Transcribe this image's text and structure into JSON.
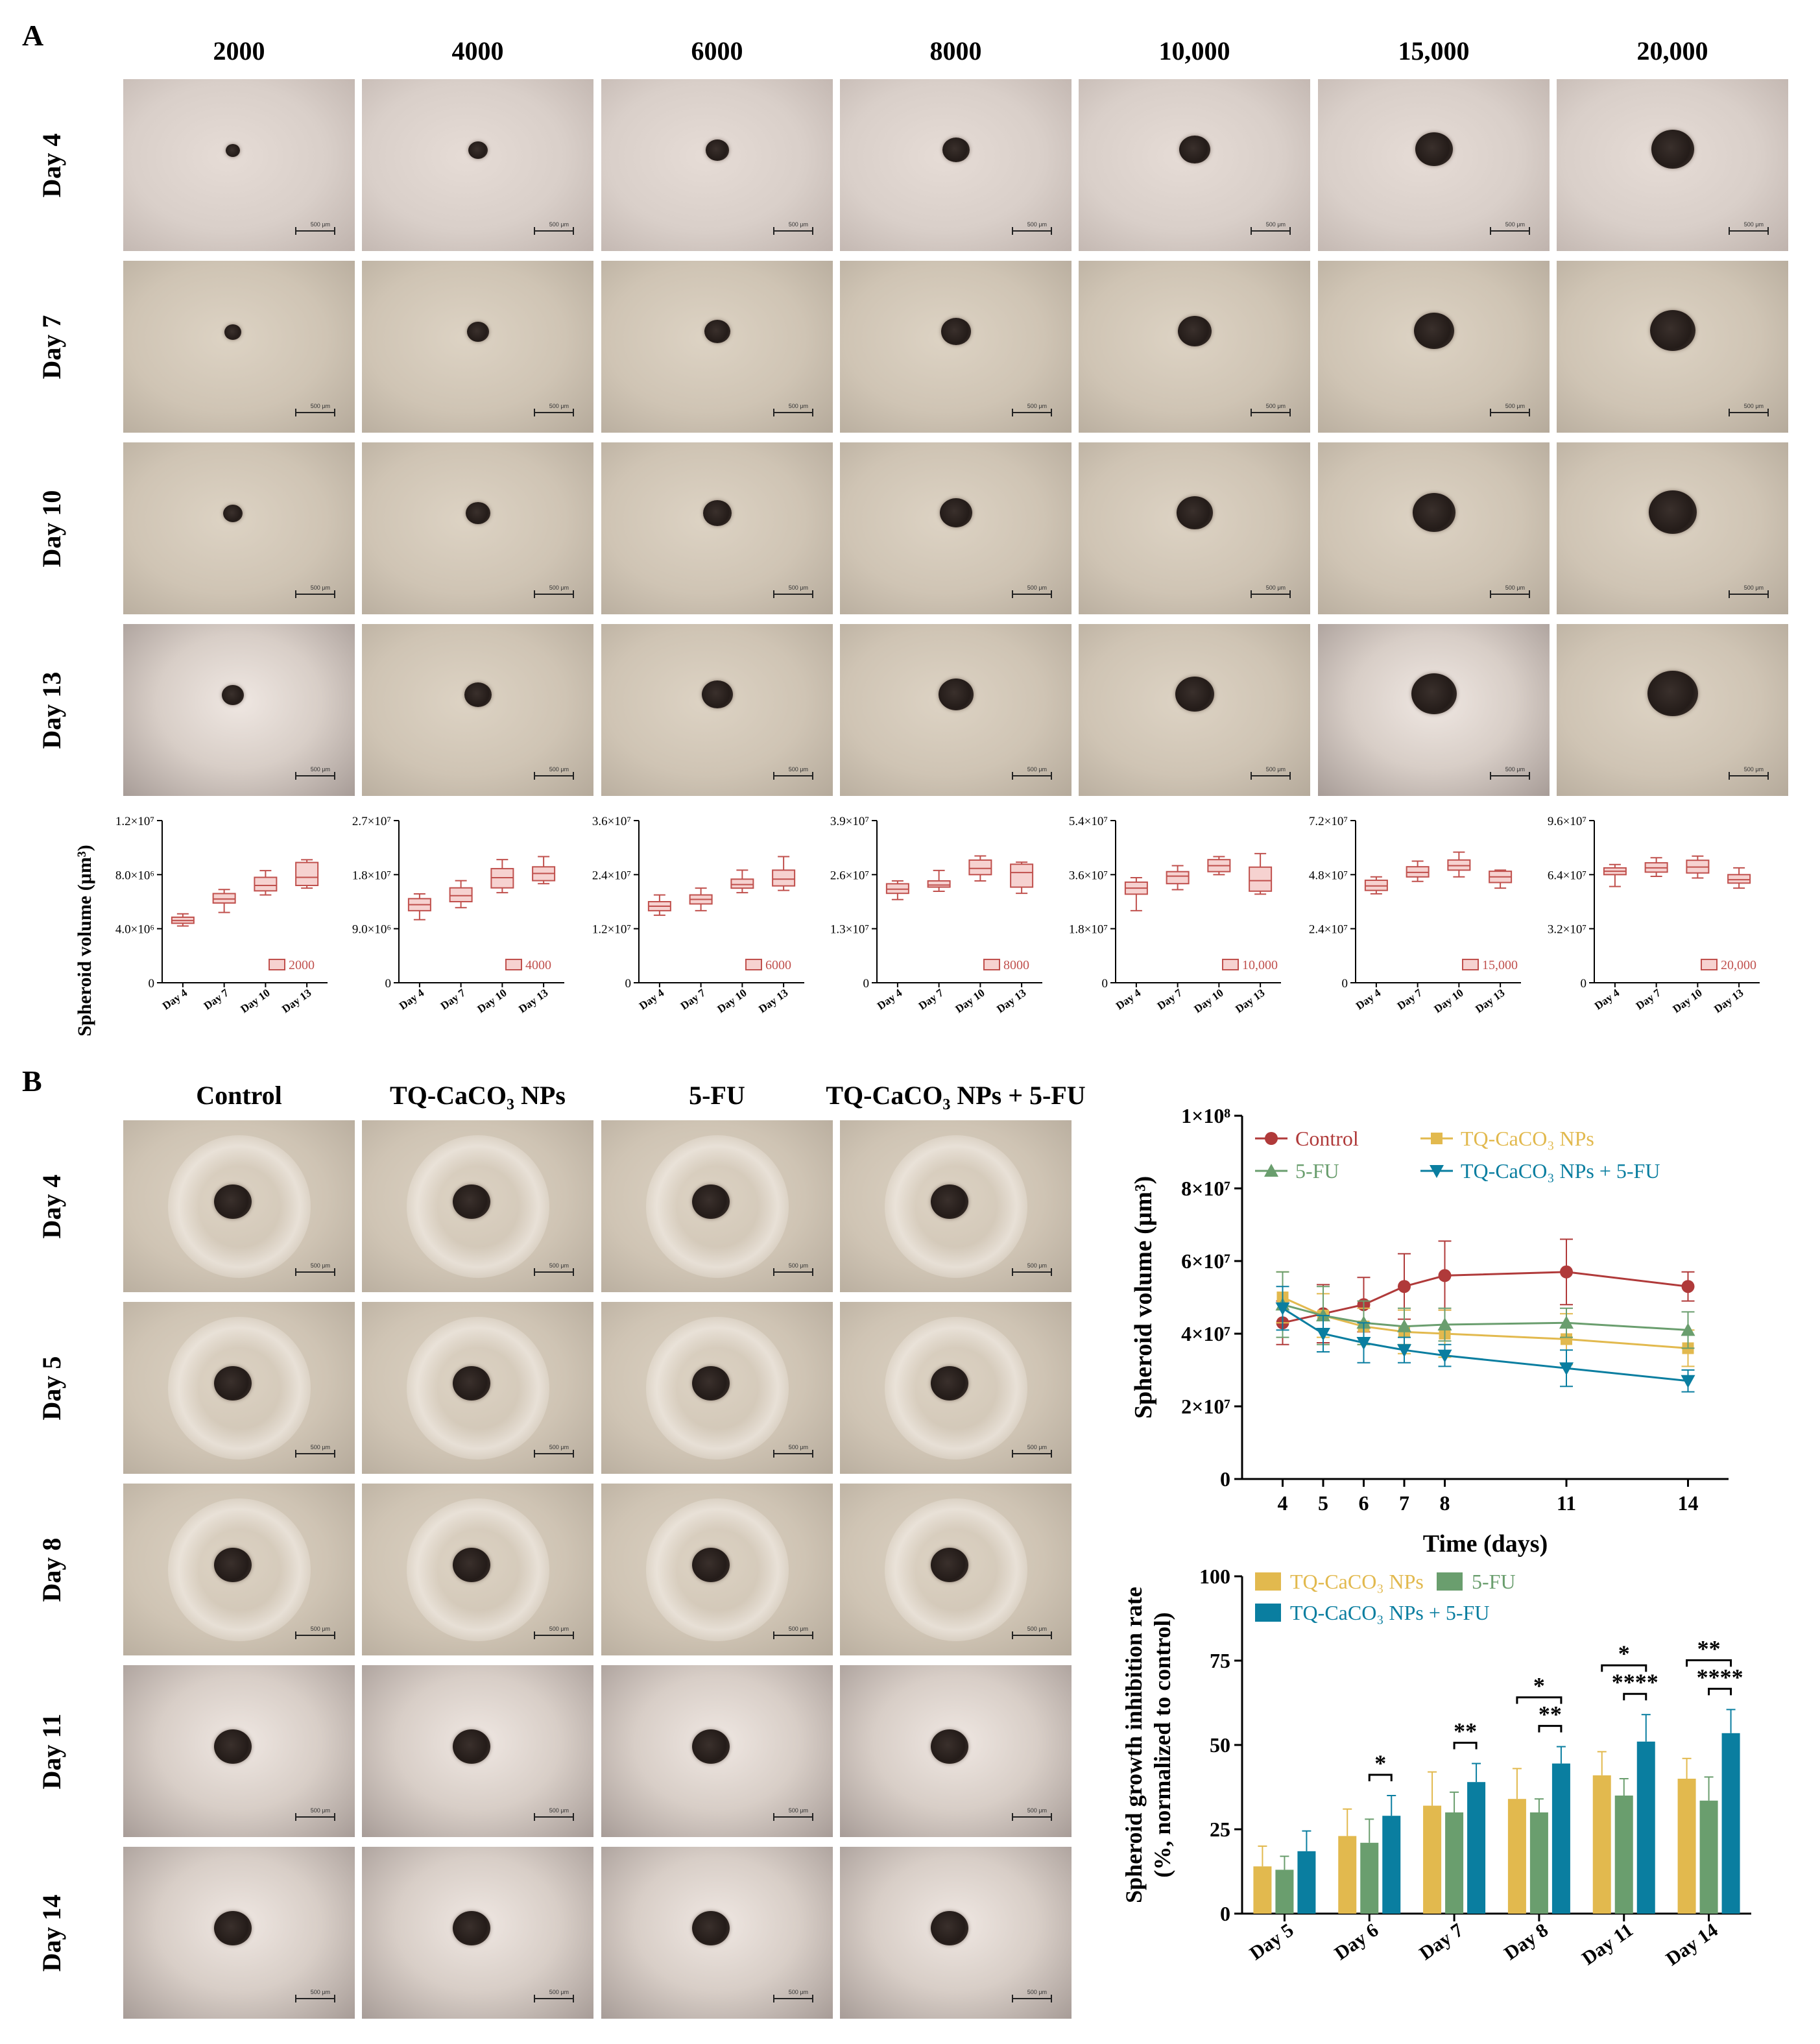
{
  "panelA": {
    "letter": "A",
    "cell_counts": [
      "2000",
      "4000",
      "6000",
      "8000",
      "10,000",
      "15,000",
      "20,000"
    ],
    "days": [
      "Day 4",
      "Day 7",
      "Day 10",
      "Day 13"
    ],
    "scale_label": "500 μm"
  },
  "panelB": {
    "letter": "B",
    "treatments": [
      "Control",
      "TQ-CaCO₃ NPs",
      "5-FU",
      "TQ-CaCO₃ NPs + 5-FU"
    ],
    "days": [
      "Day 4",
      "Day 5",
      "Day 8",
      "Day 11",
      "Day 14"
    ],
    "scale_label": "500 μm"
  },
  "colors": {
    "box": "#c0504d",
    "box_fill": "#f6d2d0",
    "control": "#b03a3a",
    "tq": "#e2b94e",
    "fu": "#6a9e6e",
    "combo": "#0a7ea0"
  },
  "chart_data": [
    {
      "type": "box",
      "ylabel": "Spheroid volume (μm³)",
      "legend": "2000",
      "categories": [
        "Day 4",
        "Day 7",
        "Day 10",
        "Day 13"
      ],
      "yticks": [
        "0",
        "4.0×10⁶",
        "8.0×10⁶",
        "1.2×10⁷"
      ],
      "ylim": [
        0,
        12000000
      ],
      "boxes": [
        [
          4200000,
          4400000,
          4600000,
          4850000,
          5100000
        ],
        [
          5200000,
          5900000,
          6200000,
          6600000,
          6900000
        ],
        [
          6500000,
          6800000,
          7200000,
          7800000,
          8300000
        ],
        [
          7000000,
          7200000,
          7800000,
          8900000,
          9100000
        ]
      ]
    },
    {
      "type": "box",
      "legend": "4000",
      "categories": [
        "Day 4",
        "Day 7",
        "Day 10",
        "Day 13"
      ],
      "yticks": [
        "0",
        "9.0×10⁶",
        "1.8×10⁷",
        "2.7×10⁷"
      ],
      "ylim": [
        0,
        27000000
      ],
      "boxes": [
        [
          10500000,
          12000000,
          13000000,
          14000000,
          14800000
        ],
        [
          12500000,
          13500000,
          14500000,
          15800000,
          17000000
        ],
        [
          15000000,
          15800000,
          17500000,
          19000000,
          20500000
        ],
        [
          16500000,
          17000000,
          18200000,
          19300000,
          21000000
        ]
      ]
    },
    {
      "type": "box",
      "legend": "6000",
      "categories": [
        "Day 4",
        "Day 7",
        "Day 10",
        "Day 13"
      ],
      "yticks": [
        "0",
        "1.2×10⁷",
        "2.4×10⁷",
        "3.6×10⁷"
      ],
      "ylim": [
        0,
        36000000
      ],
      "boxes": [
        [
          15000000,
          16000000,
          17000000,
          18000000,
          19500000
        ],
        [
          16000000,
          17500000,
          18500000,
          19500000,
          21000000
        ],
        [
          20000000,
          21000000,
          21800000,
          23000000,
          25000000
        ],
        [
          20500000,
          21500000,
          23000000,
          25000000,
          28000000
        ]
      ]
    },
    {
      "type": "box",
      "legend": "8000",
      "categories": [
        "Day 4",
        "Day 7",
        "Day 10",
        "Day 13"
      ],
      "yticks": [
        "0",
        "1.3×10⁷",
        "2.6×10⁷",
        "3.9×10⁷"
      ],
      "ylim": [
        0,
        39000000
      ],
      "boxes": [
        [
          20000000,
          21500000,
          22500000,
          23800000,
          24500000
        ],
        [
          22000000,
          23000000,
          23500000,
          24500000,
          27000000
        ],
        [
          24500000,
          26000000,
          27500000,
          29500000,
          30500000
        ],
        [
          21500000,
          23000000,
          26500000,
          28500000,
          29000000
        ]
      ]
    },
    {
      "type": "box",
      "legend": "10,000",
      "categories": [
        "Day 4",
        "Day 7",
        "Day 10",
        "Day 13"
      ],
      "yticks": [
        "0",
        "1.8×10⁷",
        "3.6×10⁷",
        "5.4×10⁷"
      ],
      "ylim": [
        0,
        54000000
      ],
      "boxes": [
        [
          24000000,
          29500000,
          31500000,
          33500000,
          35000000
        ],
        [
          31000000,
          33000000,
          35500000,
          37000000,
          39000000
        ],
        [
          36000000,
          37000000,
          39000000,
          41000000,
          42000000
        ],
        [
          29500000,
          30500000,
          34000000,
          38500000,
          43000000
        ]
      ]
    },
    {
      "type": "box",
      "legend": "15,000",
      "categories": [
        "Day 4",
        "Day 7",
        "Day 10",
        "Day 13"
      ],
      "yticks": [
        "0",
        "2.4×10⁷",
        "4.8×10⁷",
        "7.2×10⁷"
      ],
      "ylim": [
        0,
        72000000
      ],
      "boxes": [
        [
          39500000,
          41000000,
          43000000,
          45500000,
          47000000
        ],
        [
          45000000,
          47000000,
          49000000,
          51500000,
          54000000
        ],
        [
          47000000,
          50000000,
          52000000,
          54500000,
          58000000
        ],
        [
          42000000,
          44500000,
          47000000,
          49500000,
          50000000
        ]
      ]
    },
    {
      "type": "box",
      "legend": "20,000",
      "categories": [
        "Day 4",
        "Day 7",
        "Day 10",
        "Day 13"
      ],
      "yticks": [
        "0",
        "3.2×10⁷",
        "6.4×10⁷",
        "9.6×10⁷"
      ],
      "ylim": [
        0,
        96000000
      ],
      "boxes": [
        [
          57000000,
          64000000,
          66000000,
          68000000,
          70000000
        ],
        [
          63000000,
          65500000,
          68000000,
          71000000,
          74000000
        ],
        [
          62000000,
          65000000,
          68500000,
          72500000,
          75000000
        ],
        [
          56000000,
          59000000,
          61000000,
          64000000,
          68000000
        ]
      ]
    },
    {
      "type": "line",
      "ylabel": "Spheroid volume (μm³)",
      "xlabel": "Time (days)",
      "x": [
        4,
        5,
        6,
        7,
        8,
        11,
        14
      ],
      "xticks": [
        "4",
        "5",
        "6",
        "7",
        "8",
        "11",
        "14"
      ],
      "yticks": [
        "0",
        "2×10⁷",
        "4×10⁷",
        "6×10⁷",
        "8×10⁷",
        "1×10⁸"
      ],
      "ylim": [
        0,
        100000000
      ],
      "xlim": [
        3,
        15
      ],
      "series": [
        {
          "name": "Control",
          "values": [
            43000000,
            45500000,
            48000000,
            53000000,
            56000000,
            57000000,
            53000000
          ],
          "errors": [
            6000000,
            8000000,
            7500000,
            9000000,
            9500000,
            9000000,
            4000000
          ]
        },
        {
          "name": "TQ-CaCO₃ NPs",
          "values": [
            50000000,
            45000000,
            42000000,
            40500000,
            40000000,
            38500000,
            36000000
          ],
          "errors": [
            7000000,
            6000000,
            5000000,
            6000000,
            6500000,
            7000000,
            5000000
          ]
        },
        {
          "name": "5-FU",
          "values": [
            48000000,
            45000000,
            43000000,
            42000000,
            42500000,
            43000000,
            41000000
          ],
          "errors": [
            9000000,
            8000000,
            6000000,
            5000000,
            4500000,
            4000000,
            5000000
          ]
        },
        {
          "name": "TQ-CaCO₃ NPs + 5-FU",
          "values": [
            47000000,
            40000000,
            37500000,
            35500000,
            34000000,
            30500000,
            27000000
          ],
          "errors": [
            6000000,
            5000000,
            5500000,
            3500000,
            3000000,
            5000000,
            3000000
          ]
        }
      ]
    },
    {
      "type": "bar",
      "ylabel": "Spheroid growth inhibition rate",
      "ylabel2": "(%, normalized to control)",
      "categories": [
        "Day 5",
        "Day 6",
        "Day 7",
        "Day 8",
        "Day 11",
        "Day 14"
      ],
      "yticks": [
        "0",
        "25",
        "50",
        "75",
        "100"
      ],
      "ylim": [
        0,
        100
      ],
      "series": [
        {
          "name": "TQ-CaCO₃ NPs",
          "values": [
            14,
            23,
            32,
            34,
            41,
            40
          ],
          "errors": [
            6,
            8,
            10,
            9,
            7,
            6
          ]
        },
        {
          "name": "5-FU",
          "values": [
            13,
            21,
            30,
            30,
            35,
            33.5
          ],
          "errors": [
            4,
            7,
            6,
            4,
            5,
            7
          ]
        },
        {
          "name": "TQ-CaCO₃ NPs + 5-FU",
          "values": [
            18.5,
            29,
            39,
            44.5,
            51,
            53.5
          ],
          "errors": [
            6,
            6,
            5.5,
            5,
            8,
            7
          ]
        }
      ],
      "significance": [
        {
          "day": "Day 6",
          "from": "5-FU",
          "to": "TQ-CaCO₃ NPs + 5-FU",
          "label": "*"
        },
        {
          "day": "Day 7",
          "from": "5-FU",
          "to": "TQ-CaCO₃ NPs + 5-FU",
          "label": "**"
        },
        {
          "day": "Day 8",
          "from": "TQ-CaCO₃ NPs",
          "to": "TQ-CaCO₃ NPs + 5-FU",
          "label": "*"
        },
        {
          "day": "Day 8",
          "from": "5-FU",
          "to": "TQ-CaCO₃ NPs + 5-FU",
          "label": "**"
        },
        {
          "day": "Day 11",
          "from": "TQ-CaCO₃ NPs",
          "to": "TQ-CaCO₃ NPs + 5-FU",
          "label": "*"
        },
        {
          "day": "Day 11",
          "from": "5-FU",
          "to": "TQ-CaCO₃ NPs + 5-FU",
          "label": "****"
        },
        {
          "day": "Day 14",
          "from": "TQ-CaCO₃ NPs",
          "to": "TQ-CaCO₃ NPs + 5-FU",
          "label": "**"
        },
        {
          "day": "Day 14",
          "from": "5-FU",
          "to": "TQ-CaCO₃ NPs + 5-FU",
          "label": "****"
        }
      ]
    }
  ]
}
